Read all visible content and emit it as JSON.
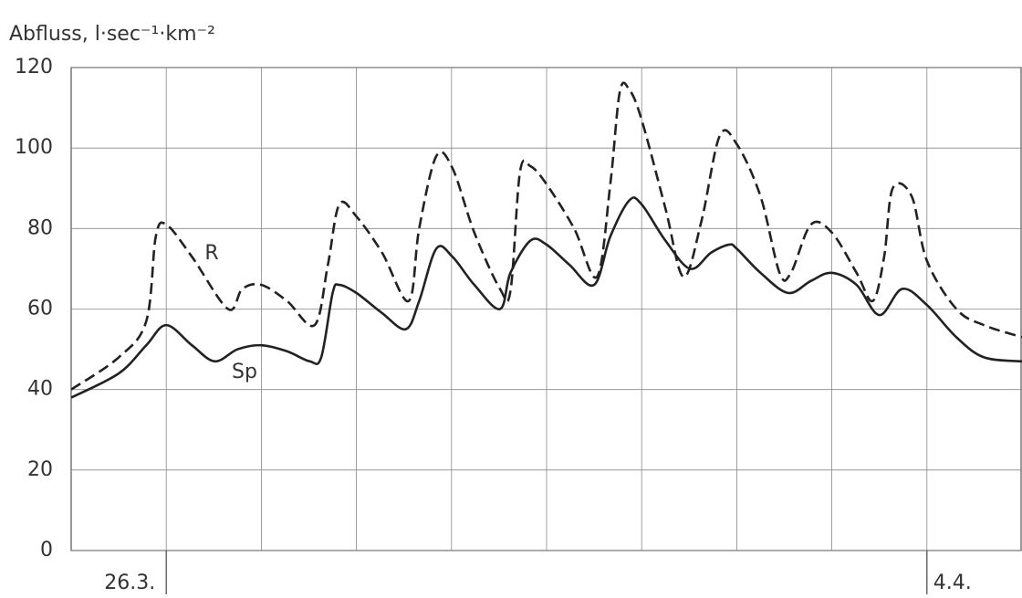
{
  "chart_data": {
    "type": "line",
    "y_label": "Abfluss, l·sec⁻¹·km⁻²",
    "xlim": [
      -1,
      9
    ],
    "xticks": [
      {
        "value": 0,
        "label": "26.3."
      },
      {
        "value": 8,
        "label": "4.4."
      }
    ],
    "xgrid": [
      0,
      1,
      2,
      3,
      4,
      5,
      6,
      7,
      8
    ],
    "ylim": [
      0,
      120
    ],
    "yticks": [
      0,
      20,
      40,
      60,
      80,
      100,
      120
    ],
    "grid": true,
    "series": [
      {
        "name": "R",
        "color": "#222222",
        "dashed": true,
        "x": [
          -1,
          -0.5,
          -0.21,
          -0.11,
          0,
          0.27,
          0.65,
          0.8,
          1.0,
          1.27,
          1.56,
          1.7,
          1.82,
          2.0,
          2.27,
          2.55,
          2.66,
          2.84,
          3.01,
          3.24,
          3.51,
          3.62,
          3.72,
          3.83,
          4.0,
          4.29,
          4.53,
          4.67,
          4.77,
          4.87,
          5.0,
          5.25,
          5.44,
          5.63,
          5.82,
          6.0,
          6.25,
          6.45,
          6.57,
          6.78,
          7.0,
          7.26,
          7.43,
          7.55,
          7.64,
          7.84,
          8.0,
          8.31,
          8.6,
          9
        ],
        "values": [
          40,
          48,
          57,
          78,
          81,
          73,
          60,
          65,
          66,
          62,
          56,
          71,
          86,
          83,
          74,
          62,
          80,
          98,
          95,
          79,
          65,
          64.5,
          94,
          95.5,
          91,
          80,
          68,
          91,
          114,
          114.5,
          107,
          85,
          68,
          82,
          103,
          101,
          88,
          69,
          69,
          81,
          79,
          69,
          62,
          73,
          90,
          88,
          72,
          60,
          56,
          53
        ]
      },
      {
        "name": "Sp",
        "color": "#222222",
        "dashed": false,
        "x": [
          -1,
          -0.5,
          -0.21,
          0,
          0.27,
          0.51,
          0.75,
          1.0,
          1.27,
          1.51,
          1.63,
          1.75,
          1.82,
          2.0,
          2.27,
          2.52,
          2.66,
          2.84,
          3.01,
          3.24,
          3.51,
          3.62,
          3.83,
          4.0,
          4.24,
          4.5,
          4.67,
          4.87,
          5.0,
          5.25,
          5.51,
          5.73,
          5.92,
          6.0,
          6.25,
          6.54,
          6.78,
          7.0,
          7.26,
          7.5,
          7.74,
          8.0,
          8.31,
          8.6,
          9
        ],
        "values": [
          38,
          44,
          51,
          56,
          51,
          47,
          50,
          51,
          49.5,
          47,
          48,
          64,
          66,
          64,
          59,
          55,
          62,
          75,
          73,
          66,
          60,
          69,
          77,
          76,
          71,
          66,
          78,
          87,
          86,
          77,
          70,
          74,
          76,
          75,
          69,
          64,
          67,
          69,
          66,
          58.5,
          65,
          61,
          53,
          48,
          47
        ]
      }
    ]
  }
}
